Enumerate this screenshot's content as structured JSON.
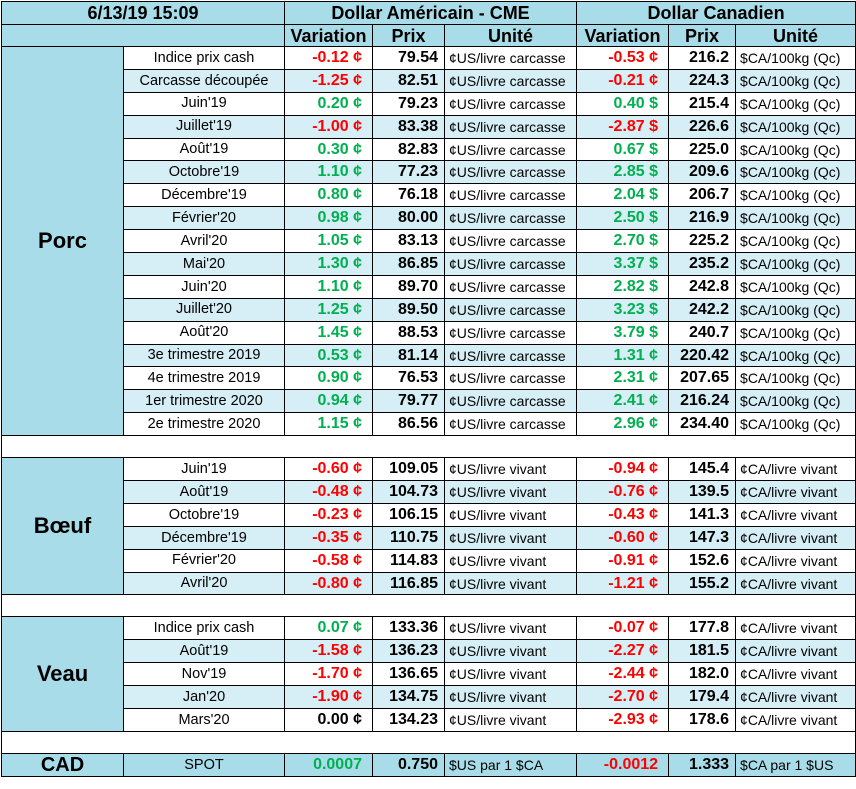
{
  "header": {
    "timestamp": "6/13/19 15:09",
    "usd_group": "Dollar Américain - CME",
    "cad_group": "Dollar Canadien",
    "col_variation": "Variation",
    "col_prix": "Prix",
    "col_unite": "Unité"
  },
  "colors": {
    "header_bg": "#a9dce9",
    "shade_bg": "#d6eef5",
    "negative": "#ff0000",
    "positive": "#00b050"
  },
  "sections": {
    "porc": {
      "name": "Porc",
      "rows": [
        {
          "label": "Indice prix cash",
          "usd_var": "-0.12 ¢",
          "usd_prix": "79.54",
          "usd_unit": "¢US/livre carcasse",
          "cad_var": "-0.53 ¢",
          "cad_prix": "216.2",
          "cad_unit": "$CA/100kg (Qc)"
        },
        {
          "label": "Carcasse découpée",
          "usd_var": "-1.25 ¢",
          "usd_prix": "82.51",
          "usd_unit": "¢US/livre carcasse",
          "cad_var": "-0.21 ¢",
          "cad_prix": "224.3",
          "cad_unit": "$CA/100kg (Qc)"
        },
        {
          "label": "Juin'19",
          "usd_var": "0.20 ¢",
          "usd_prix": "79.23",
          "usd_unit": "¢US/livre carcasse",
          "cad_var": "0.40 $",
          "cad_prix": "215.4",
          "cad_unit": "$CA/100kg (Qc)"
        },
        {
          "label": "Juillet'19",
          "usd_var": "-1.00 ¢",
          "usd_prix": "83.38",
          "usd_unit": "¢US/livre carcasse",
          "cad_var": "-2.87 $",
          "cad_prix": "226.6",
          "cad_unit": "$CA/100kg (Qc)"
        },
        {
          "label": "Août'19",
          "usd_var": "0.30 ¢",
          "usd_prix": "82.83",
          "usd_unit": "¢US/livre carcasse",
          "cad_var": "0.67 $",
          "cad_prix": "225.0",
          "cad_unit": "$CA/100kg (Qc)"
        },
        {
          "label": "Octobre'19",
          "usd_var": "1.10 ¢",
          "usd_prix": "77.23",
          "usd_unit": "¢US/livre carcasse",
          "cad_var": "2.85 $",
          "cad_prix": "209.6",
          "cad_unit": "$CA/100kg (Qc)"
        },
        {
          "label": "Décembre'19",
          "usd_var": "0.80 ¢",
          "usd_prix": "76.18",
          "usd_unit": "¢US/livre carcasse",
          "cad_var": "2.04 $",
          "cad_prix": "206.7",
          "cad_unit": "$CA/100kg (Qc)"
        },
        {
          "label": "Février'20",
          "usd_var": "0.98 ¢",
          "usd_prix": "80.00",
          "usd_unit": "¢US/livre carcasse",
          "cad_var": "2.50 $",
          "cad_prix": "216.9",
          "cad_unit": "$CA/100kg (Qc)"
        },
        {
          "label": "Avril'20",
          "usd_var": "1.05 ¢",
          "usd_prix": "83.13",
          "usd_unit": "¢US/livre carcasse",
          "cad_var": "2.70 $",
          "cad_prix": "225.2",
          "cad_unit": "$CA/100kg (Qc)"
        },
        {
          "label": "Mai'20",
          "usd_var": "1.30 ¢",
          "usd_prix": "86.85",
          "usd_unit": "¢US/livre carcasse",
          "cad_var": "3.37 $",
          "cad_prix": "235.2",
          "cad_unit": "$CA/100kg (Qc)"
        },
        {
          "label": "Juin'20",
          "usd_var": "1.10 ¢",
          "usd_prix": "89.70",
          "usd_unit": "¢US/livre carcasse",
          "cad_var": "2.82 $",
          "cad_prix": "242.8",
          "cad_unit": "$CA/100kg (Qc)"
        },
        {
          "label": "Juillet'20",
          "usd_var": "1.25 ¢",
          "usd_prix": "89.50",
          "usd_unit": "¢US/livre carcasse",
          "cad_var": "3.23 $",
          "cad_prix": "242.2",
          "cad_unit": "$CA/100kg (Qc)"
        },
        {
          "label": "Août'20",
          "usd_var": "1.45 ¢",
          "usd_prix": "88.53",
          "usd_unit": "¢US/livre carcasse",
          "cad_var": "3.79 $",
          "cad_prix": "240.7",
          "cad_unit": "$CA/100kg (Qc)"
        },
        {
          "label": "3e trimestre 2019",
          "usd_var": "0.53 ¢",
          "usd_prix": "81.14",
          "usd_unit": "¢US/livre carcasse",
          "cad_var": "1.31 ¢",
          "cad_prix": "220.42",
          "cad_unit": "$CA/100kg (Qc)"
        },
        {
          "label": "4e trimestre 2019",
          "usd_var": "0.90 ¢",
          "usd_prix": "76.53",
          "usd_unit": "¢US/livre carcasse",
          "cad_var": "2.31 ¢",
          "cad_prix": "207.65",
          "cad_unit": "$CA/100kg (Qc)"
        },
        {
          "label": "1er trimestre 2020",
          "usd_var": "0.94 ¢",
          "usd_prix": "79.77",
          "usd_unit": "¢US/livre carcasse",
          "cad_var": "2.41 ¢",
          "cad_prix": "216.24",
          "cad_unit": "$CA/100kg (Qc)"
        },
        {
          "label": "2e trimestre 2020",
          "usd_var": "1.15 ¢",
          "usd_prix": "86.56",
          "usd_unit": "¢US/livre carcasse",
          "cad_var": "2.96 ¢",
          "cad_prix": "234.40",
          "cad_unit": "$CA/100kg (Qc)"
        }
      ]
    },
    "boeuf": {
      "name": "Bœuf",
      "rows": [
        {
          "label": "Juin'19",
          "usd_var": "-0.60 ¢",
          "usd_prix": "109.05",
          "usd_unit": "¢US/livre vivant",
          "cad_var": "-0.94 ¢",
          "cad_prix": "145.4",
          "cad_unit": "¢CA/livre vivant"
        },
        {
          "label": "Août'19",
          "usd_var": "-0.48 ¢",
          "usd_prix": "104.73",
          "usd_unit": "¢US/livre vivant",
          "cad_var": "-0.76 ¢",
          "cad_prix": "139.5",
          "cad_unit": "¢CA/livre vivant"
        },
        {
          "label": "Octobre'19",
          "usd_var": "-0.23 ¢",
          "usd_prix": "106.15",
          "usd_unit": "¢US/livre vivant",
          "cad_var": "-0.43 ¢",
          "cad_prix": "141.3",
          "cad_unit": "¢CA/livre vivant"
        },
        {
          "label": "Décembre'19",
          "usd_var": "-0.35 ¢",
          "usd_prix": "110.75",
          "usd_unit": "¢US/livre vivant",
          "cad_var": "-0.60 ¢",
          "cad_prix": "147.3",
          "cad_unit": "¢CA/livre vivant"
        },
        {
          "label": "Février'20",
          "usd_var": "-0.58 ¢",
          "usd_prix": "114.83",
          "usd_unit": "¢US/livre vivant",
          "cad_var": "-0.91 ¢",
          "cad_prix": "152.6",
          "cad_unit": "¢CA/livre vivant"
        },
        {
          "label": "Avril'20",
          "usd_var": "-0.80 ¢",
          "usd_prix": "116.85",
          "usd_unit": "¢US/livre vivant",
          "cad_var": "-1.21 ¢",
          "cad_prix": "155.2",
          "cad_unit": "¢CA/livre vivant"
        }
      ]
    },
    "veau": {
      "name": "Veau",
      "rows": [
        {
          "label": "Indice prix cash",
          "usd_var": "0.07 ¢",
          "usd_prix": "133.36",
          "usd_unit": "¢US/livre vivant",
          "cad_var": "-0.07 ¢",
          "cad_prix": "177.8",
          "cad_unit": "¢CA/livre vivant"
        },
        {
          "label": "Août'19",
          "usd_var": "-1.58 ¢",
          "usd_prix": "136.23",
          "usd_unit": "¢US/livre vivant",
          "cad_var": "-2.27 ¢",
          "cad_prix": "181.5",
          "cad_unit": "¢CA/livre vivant"
        },
        {
          "label": "Nov'19",
          "usd_var": "-1.70 ¢",
          "usd_prix": "136.65",
          "usd_unit": "¢US/livre vivant",
          "cad_var": "-2.44 ¢",
          "cad_prix": "182.0",
          "cad_unit": "¢CA/livre vivant"
        },
        {
          "label": "Jan'20",
          "usd_var": "-1.90 ¢",
          "usd_prix": "134.75",
          "usd_unit": "¢US/livre vivant",
          "cad_var": "-2.70 ¢",
          "cad_prix": "179.4",
          "cad_unit": "¢CA/livre vivant"
        },
        {
          "label": "Mars'20",
          "usd_var": "0.00 ¢",
          "usd_prix": "134.23",
          "usd_unit": "¢US/livre vivant",
          "cad_var": "-2.93 ¢",
          "cad_prix": "178.6",
          "cad_unit": "¢CA/livre vivant"
        }
      ]
    },
    "cad": {
      "name": "CAD",
      "label": "SPOT",
      "usd_var": "0.0007",
      "usd_prix": "0.750",
      "usd_unit": "$US par 1 $CA",
      "cad_var": "-0.0012",
      "cad_prix": "1.333",
      "cad_unit": "$CA par 1 $US"
    }
  }
}
